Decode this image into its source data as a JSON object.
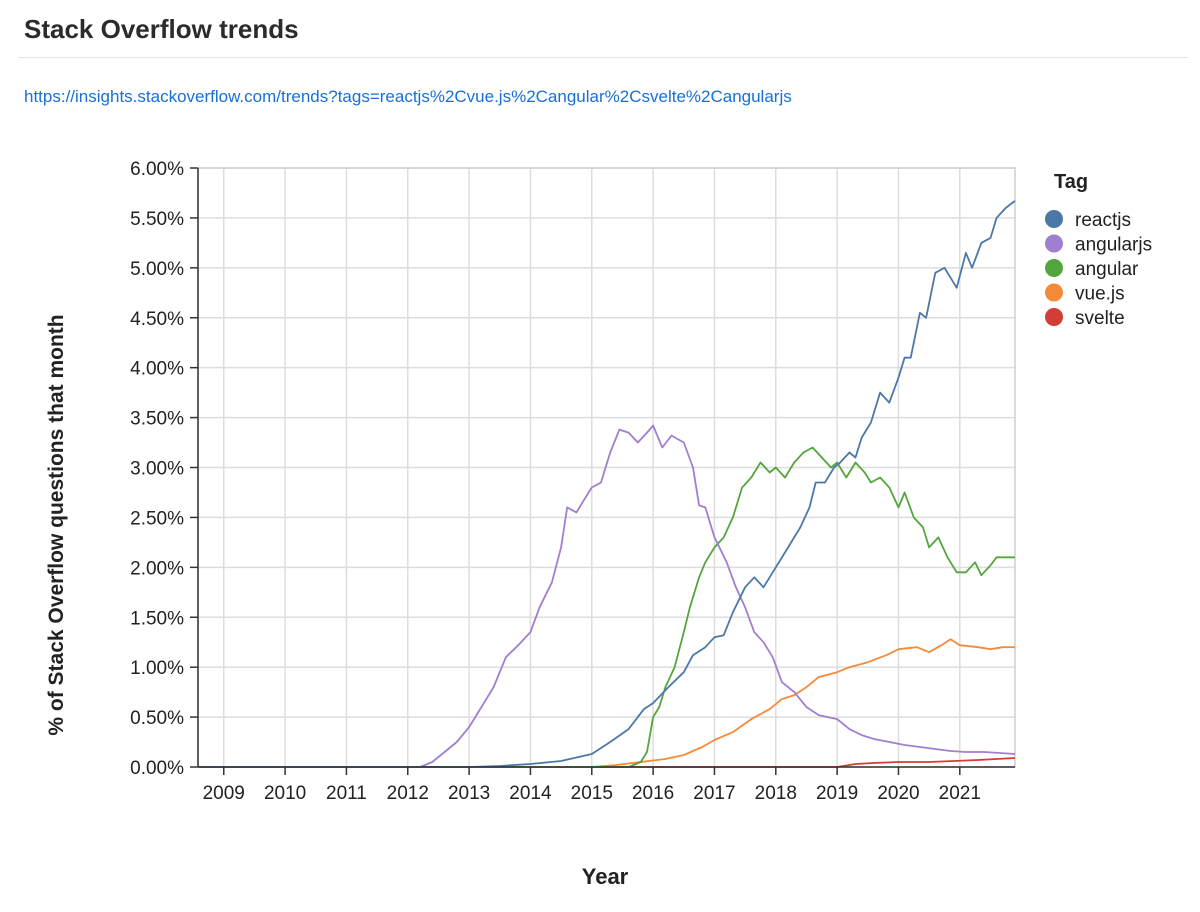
{
  "header": {
    "title": "Stack Overflow trends",
    "link": "https://insights.stackoverflow.com/trends?tags=reactjs%2Cvue.js%2Cangular%2Csvelte%2Cangularjs"
  },
  "chart_data": {
    "type": "line",
    "title": "",
    "xlabel": "Year",
    "ylabel": "% of Stack Overflow questions that month",
    "x_ticks": [
      "2009",
      "2010",
      "2011",
      "2012",
      "2013",
      "2014",
      "2015",
      "2016",
      "2017",
      "2018",
      "2019",
      "2020",
      "2021"
    ],
    "y_ticks": [
      "0.00%",
      "0.50%",
      "1.00%",
      "1.50%",
      "2.00%",
      "2.50%",
      "3.00%",
      "3.50%",
      "4.00%",
      "4.50%",
      "5.00%",
      "5.50%",
      "6.00%"
    ],
    "xlim": [
      2008.58,
      2021.9
    ],
    "ylim": [
      0,
      6
    ],
    "grid": true,
    "legend": {
      "title": "Tag",
      "placement": "right"
    },
    "series": [
      {
        "name": "reactjs",
        "color": "#4c78a8",
        "points": [
          [
            2008.6,
            0
          ],
          [
            2013.0,
            0
          ],
          [
            2013.5,
            0.01
          ],
          [
            2014.0,
            0.03
          ],
          [
            2014.5,
            0.06
          ],
          [
            2015.0,
            0.13
          ],
          [
            2015.3,
            0.25
          ],
          [
            2015.6,
            0.38
          ],
          [
            2015.85,
            0.58
          ],
          [
            2016.0,
            0.64
          ],
          [
            2016.25,
            0.8
          ],
          [
            2016.5,
            0.95
          ],
          [
            2016.65,
            1.12
          ],
          [
            2016.85,
            1.2
          ],
          [
            2017.0,
            1.3
          ],
          [
            2017.15,
            1.32
          ],
          [
            2017.3,
            1.55
          ],
          [
            2017.5,
            1.8
          ],
          [
            2017.65,
            1.9
          ],
          [
            2017.8,
            1.8
          ],
          [
            2018.0,
            2.0
          ],
          [
            2018.2,
            2.2
          ],
          [
            2018.4,
            2.4
          ],
          [
            2018.55,
            2.6
          ],
          [
            2018.65,
            2.85
          ],
          [
            2018.8,
            2.85
          ],
          [
            2018.95,
            3.0
          ],
          [
            2019.05,
            3.05
          ],
          [
            2019.2,
            3.15
          ],
          [
            2019.3,
            3.1
          ],
          [
            2019.4,
            3.3
          ],
          [
            2019.55,
            3.45
          ],
          [
            2019.7,
            3.75
          ],
          [
            2019.85,
            3.65
          ],
          [
            2020.0,
            3.9
          ],
          [
            2020.1,
            4.1
          ],
          [
            2020.2,
            4.1
          ],
          [
            2020.35,
            4.55
          ],
          [
            2020.45,
            4.5
          ],
          [
            2020.6,
            4.95
          ],
          [
            2020.75,
            5.0
          ],
          [
            2020.85,
            4.9
          ],
          [
            2020.95,
            4.8
          ],
          [
            2021.1,
            5.15
          ],
          [
            2021.2,
            5.0
          ],
          [
            2021.35,
            5.25
          ],
          [
            2021.5,
            5.3
          ],
          [
            2021.6,
            5.5
          ],
          [
            2021.75,
            5.6
          ],
          [
            2021.9,
            5.67
          ]
        ]
      },
      {
        "name": "angularjs",
        "color": "#9f7fd1",
        "points": [
          [
            2008.6,
            0
          ],
          [
            2012.2,
            0
          ],
          [
            2012.4,
            0.05
          ],
          [
            2012.6,
            0.15
          ],
          [
            2012.8,
            0.25
          ],
          [
            2013.0,
            0.4
          ],
          [
            2013.2,
            0.6
          ],
          [
            2013.4,
            0.8
          ],
          [
            2013.6,
            1.1
          ],
          [
            2013.8,
            1.22
          ],
          [
            2014.0,
            1.35
          ],
          [
            2014.15,
            1.6
          ],
          [
            2014.35,
            1.85
          ],
          [
            2014.5,
            2.2
          ],
          [
            2014.6,
            2.6
          ],
          [
            2014.75,
            2.55
          ],
          [
            2014.9,
            2.7
          ],
          [
            2015.0,
            2.8
          ],
          [
            2015.15,
            2.85
          ],
          [
            2015.3,
            3.15
          ],
          [
            2015.45,
            3.38
          ],
          [
            2015.6,
            3.35
          ],
          [
            2015.75,
            3.25
          ],
          [
            2015.9,
            3.35
          ],
          [
            2016.0,
            3.42
          ],
          [
            2016.15,
            3.2
          ],
          [
            2016.3,
            3.32
          ],
          [
            2016.5,
            3.25
          ],
          [
            2016.65,
            3.0
          ],
          [
            2016.75,
            2.62
          ],
          [
            2016.85,
            2.6
          ],
          [
            2017.0,
            2.3
          ],
          [
            2017.2,
            2.05
          ],
          [
            2017.35,
            1.8
          ],
          [
            2017.5,
            1.6
          ],
          [
            2017.65,
            1.35
          ],
          [
            2017.8,
            1.25
          ],
          [
            2017.95,
            1.1
          ],
          [
            2018.1,
            0.85
          ],
          [
            2018.3,
            0.75
          ],
          [
            2018.5,
            0.6
          ],
          [
            2018.7,
            0.52
          ],
          [
            2019.0,
            0.48
          ],
          [
            2019.2,
            0.38
          ],
          [
            2019.4,
            0.32
          ],
          [
            2019.6,
            0.28
          ],
          [
            2019.85,
            0.25
          ],
          [
            2020.1,
            0.22
          ],
          [
            2020.35,
            0.2
          ],
          [
            2020.6,
            0.18
          ],
          [
            2020.85,
            0.16
          ],
          [
            2021.1,
            0.15
          ],
          [
            2021.4,
            0.15
          ],
          [
            2021.65,
            0.14
          ],
          [
            2021.9,
            0.13
          ]
        ]
      },
      {
        "name": "angular",
        "color": "#55a53e",
        "points": [
          [
            2008.6,
            0
          ],
          [
            2015.6,
            0
          ],
          [
            2015.8,
            0.05
          ],
          [
            2015.9,
            0.15
          ],
          [
            2016.0,
            0.5
          ],
          [
            2016.1,
            0.6
          ],
          [
            2016.2,
            0.8
          ],
          [
            2016.35,
            1.0
          ],
          [
            2016.5,
            1.35
          ],
          [
            2016.6,
            1.6
          ],
          [
            2016.75,
            1.9
          ],
          [
            2016.85,
            2.05
          ],
          [
            2017.0,
            2.2
          ],
          [
            2017.15,
            2.3
          ],
          [
            2017.3,
            2.5
          ],
          [
            2017.45,
            2.8
          ],
          [
            2017.6,
            2.9
          ],
          [
            2017.75,
            3.05
          ],
          [
            2017.9,
            2.95
          ],
          [
            2018.0,
            3.0
          ],
          [
            2018.15,
            2.9
          ],
          [
            2018.3,
            3.05
          ],
          [
            2018.45,
            3.15
          ],
          [
            2018.6,
            3.2
          ],
          [
            2018.75,
            3.1
          ],
          [
            2018.9,
            3.0
          ],
          [
            2019.0,
            3.05
          ],
          [
            2019.15,
            2.9
          ],
          [
            2019.3,
            3.05
          ],
          [
            2019.45,
            2.95
          ],
          [
            2019.55,
            2.85
          ],
          [
            2019.7,
            2.9
          ],
          [
            2019.85,
            2.8
          ],
          [
            2020.0,
            2.6
          ],
          [
            2020.1,
            2.75
          ],
          [
            2020.25,
            2.5
          ],
          [
            2020.4,
            2.4
          ],
          [
            2020.5,
            2.2
          ],
          [
            2020.65,
            2.3
          ],
          [
            2020.8,
            2.1
          ],
          [
            2020.95,
            1.95
          ],
          [
            2021.1,
            1.95
          ],
          [
            2021.25,
            2.05
          ],
          [
            2021.35,
            1.92
          ],
          [
            2021.5,
            2.02
          ],
          [
            2021.6,
            2.1
          ],
          [
            2021.75,
            2.1
          ],
          [
            2021.9,
            2.1
          ]
        ]
      },
      {
        "name": "vue.js",
        "color": "#f58a3a",
        "points": [
          [
            2008.6,
            0
          ],
          [
            2015.0,
            0
          ],
          [
            2015.4,
            0.02
          ],
          [
            2015.8,
            0.05
          ],
          [
            2016.2,
            0.08
          ],
          [
            2016.5,
            0.12
          ],
          [
            2016.8,
            0.2
          ],
          [
            2017.0,
            0.27
          ],
          [
            2017.3,
            0.35
          ],
          [
            2017.6,
            0.48
          ],
          [
            2017.9,
            0.58
          ],
          [
            2018.1,
            0.68
          ],
          [
            2018.3,
            0.72
          ],
          [
            2018.5,
            0.8
          ],
          [
            2018.7,
            0.9
          ],
          [
            2019.0,
            0.95
          ],
          [
            2019.2,
            1.0
          ],
          [
            2019.5,
            1.05
          ],
          [
            2019.8,
            1.12
          ],
          [
            2020.0,
            1.18
          ],
          [
            2020.3,
            1.2
          ],
          [
            2020.5,
            1.15
          ],
          [
            2020.7,
            1.22
          ],
          [
            2020.85,
            1.28
          ],
          [
            2021.0,
            1.22
          ],
          [
            2021.3,
            1.2
          ],
          [
            2021.5,
            1.18
          ],
          [
            2021.7,
            1.2
          ],
          [
            2021.9,
            1.2
          ]
        ]
      },
      {
        "name": "svelte",
        "color": "#d43d35",
        "points": [
          [
            2008.6,
            0
          ],
          [
            2019.0,
            0
          ],
          [
            2019.3,
            0.03
          ],
          [
            2019.6,
            0.04
          ],
          [
            2020.0,
            0.05
          ],
          [
            2020.5,
            0.05
          ],
          [
            2020.9,
            0.06
          ],
          [
            2021.3,
            0.07
          ],
          [
            2021.6,
            0.08
          ],
          [
            2021.9,
            0.09
          ]
        ]
      }
    ]
  }
}
